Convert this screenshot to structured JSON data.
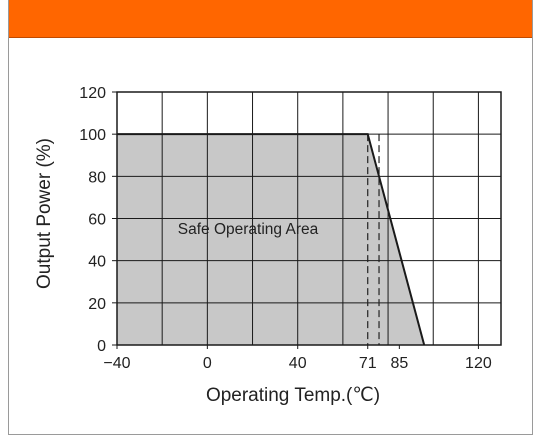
{
  "colors": {
    "header": "#ff6600",
    "safe_area_fill": "#c8c8c8",
    "grid": "#1a1a1a",
    "axis": "#1a1a1a"
  },
  "chart_data": {
    "type": "area",
    "xlabel": "Operating Temp.(℃)",
    "ylabel": "Output Power (%)",
    "xlim": [
      -40,
      130
    ],
    "ylim": [
      0,
      120
    ],
    "x_ticks": [
      -40,
      0,
      40,
      71,
      85,
      120
    ],
    "x_tick_labels": [
      "−40",
      "0",
      "40",
      "71",
      "85",
      "120"
    ],
    "y_ticks": [
      0,
      20,
      40,
      60,
      80,
      100,
      120
    ],
    "y_tick_labels": [
      "0",
      "20",
      "40",
      "60",
      "80",
      "100",
      "120"
    ],
    "x_grid": [
      -20,
      0,
      20,
      40,
      60,
      80,
      100,
      120
    ],
    "y_grid": [
      20,
      40,
      60,
      80,
      100
    ],
    "series": [
      {
        "x": [
          -40,
          71,
          96
        ],
        "y": [
          100,
          100,
          0
        ]
      }
    ],
    "dashed_verticals": [
      71,
      76
    ],
    "annotation": "Safe Operating Area",
    "grid": true
  }
}
